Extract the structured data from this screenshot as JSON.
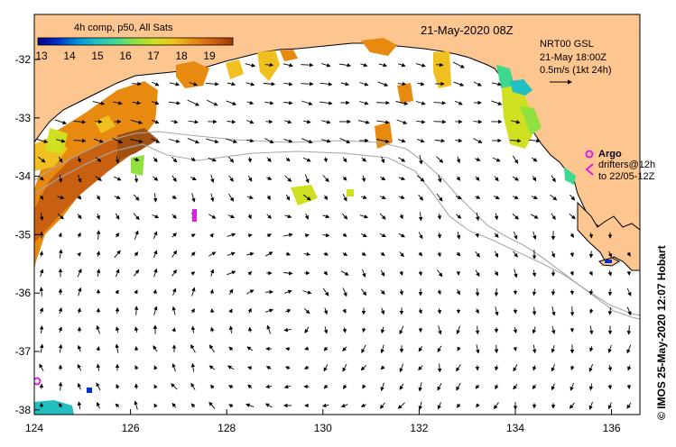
{
  "map": {
    "title": "21-May-2020 08Z",
    "colorbar": {
      "label": "4h comp, p50, All Sats",
      "ticks": [
        "13",
        "14",
        "15",
        "16",
        "17",
        "18",
        "19"
      ],
      "colors": [
        "#00008b",
        "#0030c8",
        "#0090d8",
        "#20c0c0",
        "#40d890",
        "#90e040",
        "#d0e020",
        "#f0c020",
        "#e88a10",
        "#d06010",
        "#a03808"
      ]
    },
    "currents": {
      "model": "NRT00 GSL",
      "time": "21-May 18:00Z",
      "scale": "0.5m/s (1kt 24h)"
    },
    "argo": {
      "label": "Argo",
      "note1": "drifters@12h",
      "note2": "to 22/05-12Z",
      "color": "#e020e0"
    },
    "credit": "© IMOS 25-May-2020 12:07 Hobart",
    "axes": {
      "x_ticks": [
        "124",
        "126",
        "128",
        "130",
        "132",
        "134",
        "136"
      ],
      "y_ticks": [
        "-32",
        "-33",
        "-34",
        "-35",
        "-36",
        "-37",
        "-38"
      ],
      "lon_range": [
        124,
        136.6
      ],
      "lat_range": [
        -31.4,
        -38.1
      ]
    },
    "colors": {
      "land": "#fdc590",
      "ocean": "#ffffff",
      "isobath": "#a8a8a8",
      "coast": "#000000"
    }
  }
}
